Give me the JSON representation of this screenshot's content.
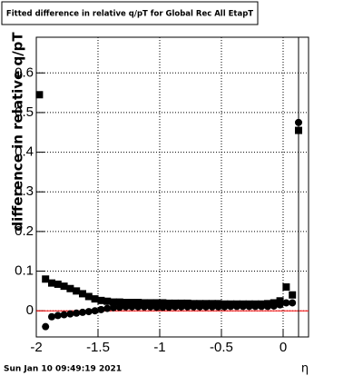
{
  "chart_data": {
    "type": "scatter",
    "title": "Fitted difference in relative q/pT for Global Rec All EtapT",
    "y_label": "difference in relative q/pT",
    "x_label": "η",
    "timestamp": "Sun Jan 10 09:49:19 2021",
    "x": [
      -1.975,
      -1.925,
      -1.875,
      -1.825,
      -1.775,
      -1.725,
      -1.675,
      -1.625,
      -1.575,
      -1.525,
      -1.475,
      -1.425,
      -1.375,
      -1.325,
      -1.275,
      -1.225,
      -1.175,
      -1.125,
      -1.075,
      -1.025,
      -0.975,
      -0.925,
      -0.875,
      -0.825,
      -0.775,
      -0.725,
      -0.675,
      -0.625,
      -0.575,
      -0.525,
      -0.475,
      -0.425,
      -0.375,
      -0.325,
      -0.275,
      -0.225,
      -0.175,
      -0.125,
      -0.075,
      -0.025,
      0.025,
      0.075,
      0.125
    ],
    "series": [
      {
        "color": "#000000",
        "marker": "square",
        "values": [
          0.545,
          0.08,
          0.07,
          0.067,
          0.062,
          0.056,
          0.05,
          0.043,
          0.036,
          0.03,
          0.026,
          0.024,
          0.022,
          0.022,
          0.021,
          0.021,
          0.021,
          0.02,
          0.02,
          0.02,
          0.02,
          0.019,
          0.019,
          0.019,
          0.019,
          0.018,
          0.018,
          0.018,
          0.018,
          0.018,
          0.017,
          0.017,
          0.017,
          0.017,
          0.017,
          0.017,
          0.017,
          0.018,
          0.02,
          0.025,
          0.06,
          0.04,
          0.455
        ]
      },
      {
        "color": "#000000",
        "marker": "circle",
        "values": [
          null,
          -0.04,
          -0.015,
          -0.012,
          -0.01,
          -0.008,
          -0.006,
          -0.004,
          -0.002,
          0.0,
          0.003,
          0.006,
          0.008,
          0.009,
          0.01,
          0.01,
          0.01,
          0.01,
          0.01,
          0.009,
          0.009,
          0.009,
          0.01,
          0.01,
          0.01,
          0.01,
          0.01,
          0.01,
          0.01,
          0.01,
          0.01,
          0.011,
          0.011,
          0.011,
          0.011,
          0.011,
          0.011,
          0.011,
          0.012,
          0.015,
          0.02,
          0.02,
          0.475
        ]
      }
    ],
    "xlim": [
      -2.0,
      0.206
    ],
    "ylim": [
      -0.066,
      0.69
    ],
    "xticks": [
      -2,
      -1.5,
      -1,
      -0.5,
      0
    ],
    "yticks": [
      0,
      0.1,
      0.2,
      0.3,
      0.4,
      0.5,
      0.6
    ],
    "grid": true,
    "hline": {
      "value": 0,
      "color": "#ff0000"
    },
    "vline": {
      "value": 0.125,
      "color": "#000000"
    }
  }
}
